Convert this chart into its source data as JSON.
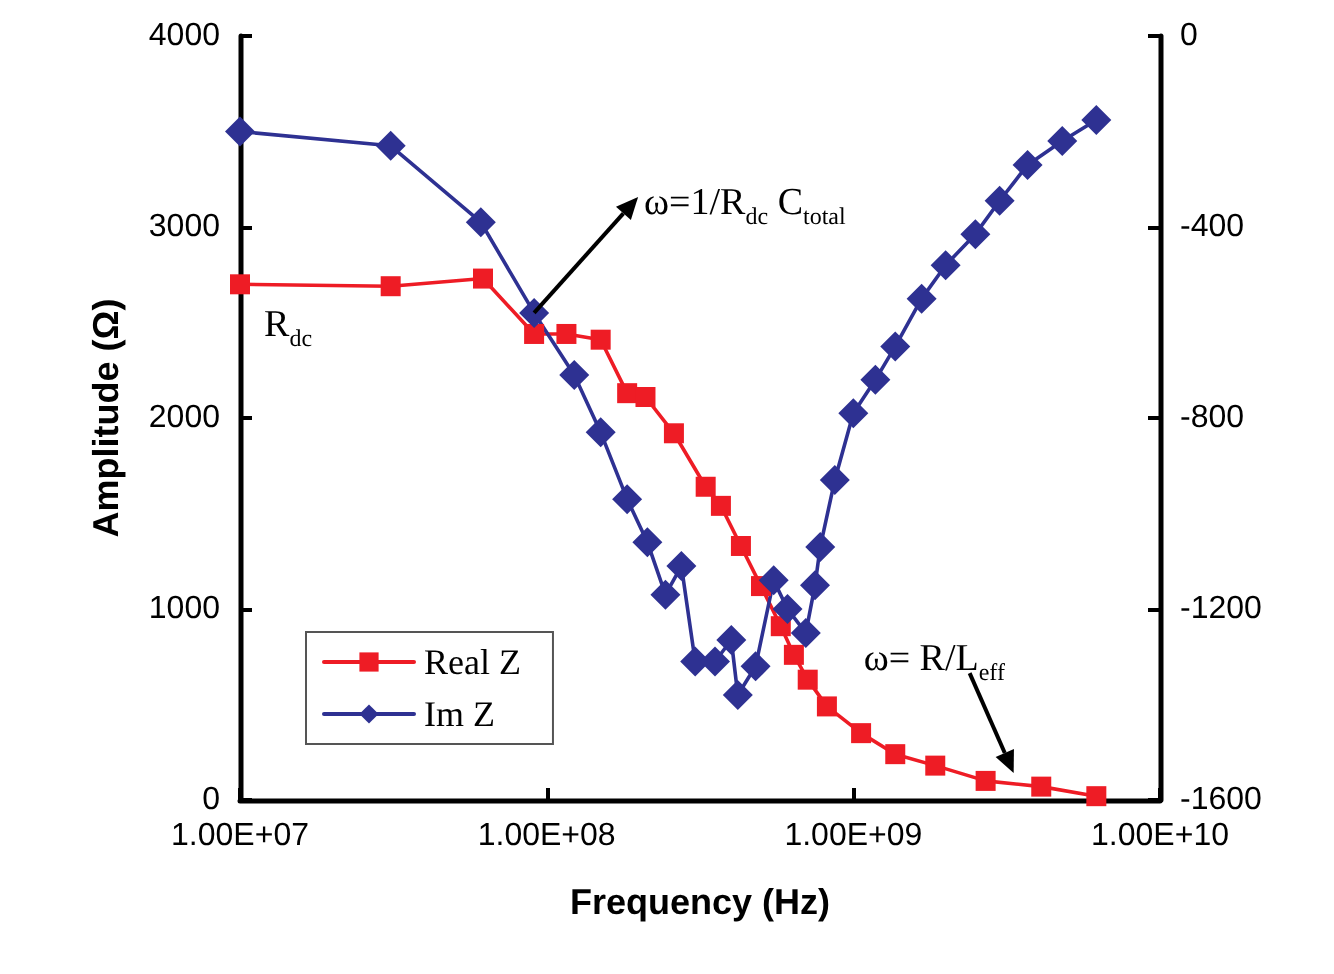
{
  "chart_data": {
    "type": "line",
    "xlabel": "Frequency (Hz)",
    "ylabel": "Amplitude (Ω)",
    "log": "x",
    "xlim": [
      10000000,
      10000000000
    ],
    "xticks": [
      {
        "value": 10000000,
        "label": "1.00E+07"
      },
      {
        "value": 100000000,
        "label": "1.00E+08"
      },
      {
        "value": 1000000000,
        "label": "1.00E+09"
      },
      {
        "value": 10000000000,
        "label": "1.00E+10"
      }
    ],
    "ylim": [
      0,
      4000
    ],
    "yticks": [
      0,
      1000,
      2000,
      3000,
      4000
    ],
    "y2lim": [
      -1600,
      0
    ],
    "y2ticks": [
      -1600,
      -1200,
      -800,
      -400,
      0
    ],
    "legend": "bottom left",
    "grid": false,
    "line_style": "solid",
    "x": [
      10000000,
      31000000,
      62000000,
      91000000,
      116000000,
      150000000,
      183000000,
      210000000,
      260000000,
      330000000,
      370000000,
      430000000,
      500000000,
      580000000,
      640000000,
      710000000,
      820000000,
      1060000000,
      1370000000,
      1850000000,
      2700000000,
      4100000000,
      6200000000
    ],
    "series": [
      {
        "name": "Real Z",
        "color": "#ee1c25",
        "marker": "square",
        "values": [
          2700,
          2690,
          2730,
          2440,
          2440,
          2410,
          2130,
          2110,
          1920,
          1640,
          1540,
          1330,
          1120,
          910,
          760,
          630,
          490,
          350,
          240,
          180,
          100,
          70,
          20
        ]
      },
      {
        "name": "Im Z",
        "color": "#2e3192",
        "marker": "diamond",
        "axis": "y2",
        "x": [
          10000000,
          31000000,
          61000000,
          91000000,
          123000000,
          150000000,
          183000000,
          213000000,
          244000000,
          275000000,
          305000000,
          354000000,
          400000000,
          420000000,
          480000000,
          550000000,
          610000000,
          700000000,
          750000000,
          780000000,
          870000000,
          1000000000,
          1180000000,
          1370000000,
          1670000000,
          2000000000,
          2500000000,
          3000000000,
          3700000000,
          4800000000,
          6200000000
        ],
        "values": [
          -200,
          -230,
          -390,
          -580,
          -710,
          -830,
          -970,
          -1060,
          -1170,
          -1110,
          -1310,
          -1310,
          -1265,
          -1380,
          -1320,
          -1140,
          -1200,
          -1250,
          -1150,
          -1070,
          -930,
          -790,
          -720,
          -650,
          -550,
          -480,
          -415,
          -345,
          -270,
          -220,
          -176
        ]
      }
    ],
    "annotations": [
      "R$_{dc}$",
      {
        "text": "ω=1/R$_{dc}$ C$_{total}$",
        "x": 91000000,
        "y": 2550
      },
      {
        "text": "ω= R/L$_{eff}$",
        "x": 4500000000,
        "y": 120
      }
    ]
  }
}
